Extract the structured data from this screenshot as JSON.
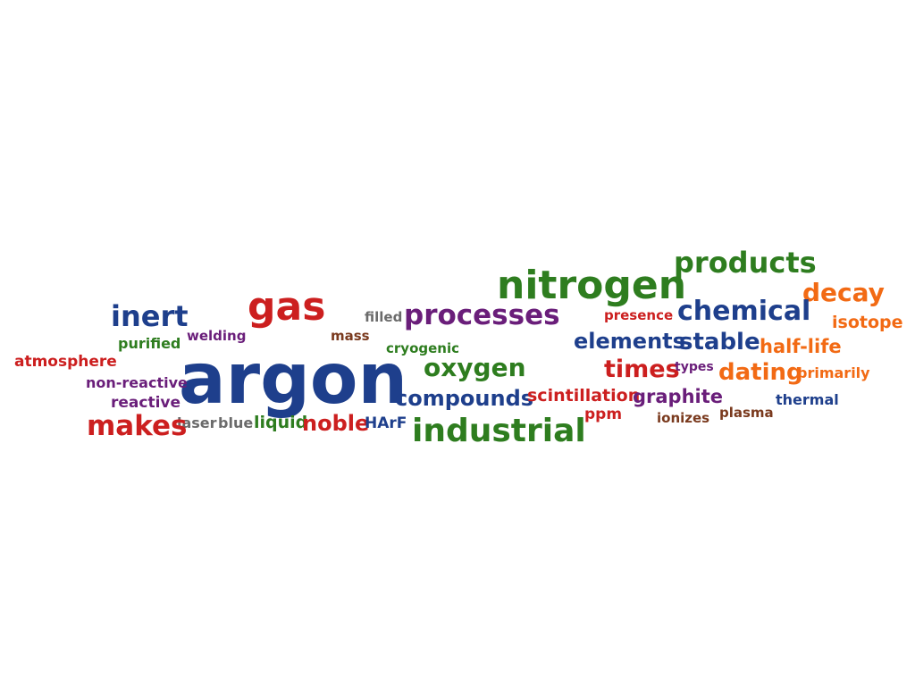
{
  "words": {
    "argon": "argon",
    "nitrogen": "nitrogen",
    "products": "products",
    "gas": "gas",
    "inert": "inert",
    "processes": "processes",
    "filled": "filled",
    "chemical": "chemical",
    "decay": "decay",
    "isotope": "isotope",
    "presence": "presence",
    "mass": "mass",
    "welding": "welding",
    "purified": "purified",
    "cryogenic": "cryogenic",
    "elements": "elements",
    "stable": "stable",
    "half_life": "half-life",
    "atmosphere": "atmosphere",
    "oxygen": "oxygen",
    "times": "times",
    "types": "types",
    "dating": "dating",
    "primarily": "primarily",
    "non_reactive": "non-reactive",
    "reactive": "reactive",
    "compounds": "compounds",
    "scintillation": "scintillation",
    "graphite": "graphite",
    "thermal": "thermal",
    "makes": "makes",
    "laser": "laser",
    "blue": "blue",
    "liquid": "liquid",
    "noble": "noble",
    "harf": "HArF",
    "industrial": "industrial",
    "ppm": "ppm",
    "ionizes": "ionizes",
    "plasma": "plasma"
  },
  "colors": {
    "green": "#2e7d1f",
    "red": "#cc1f1f",
    "blue": "#1e3f8c",
    "purple": "#6a1e7a",
    "orange": "#f26a14",
    "brown": "#7a3a1e",
    "gray": "#6b6b6b"
  }
}
